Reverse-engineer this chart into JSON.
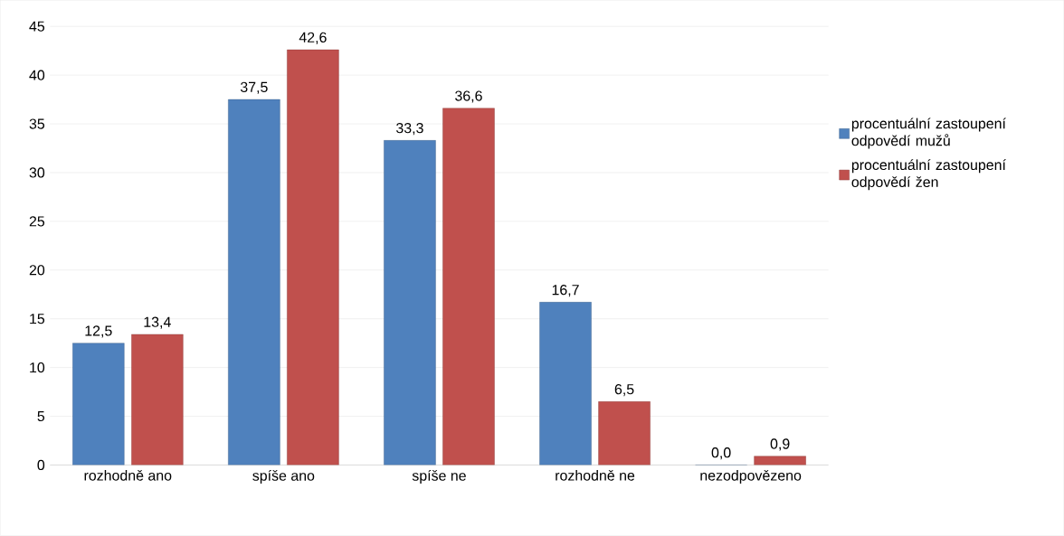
{
  "chart_data": {
    "type": "bar",
    "categories": [
      "rozhodně ano",
      "spíše ano",
      "spíše ne",
      "rozhodně ne",
      "nezodpovězeno"
    ],
    "series": [
      {
        "name": "procentuální zastoupení odpovědí mužů",
        "color": "#4f81bd",
        "values": [
          12.5,
          37.5,
          33.3,
          16.7,
          0.0
        ],
        "value_labels": [
          "12,5",
          "37,5",
          "33,3",
          "16,7",
          "0,0"
        ]
      },
      {
        "name": "procentuální zastoupení odpovědí žen",
        "color": "#c0504d",
        "values": [
          13.4,
          42.6,
          36.6,
          6.5,
          0.9
        ],
        "value_labels": [
          "13,4",
          "42,6",
          "36,6",
          "6,5",
          "0,9"
        ]
      }
    ],
    "ylim": [
      0,
      45
    ],
    "yticks": [
      0,
      5,
      10,
      15,
      20,
      25,
      30,
      35,
      40,
      45
    ],
    "grid": "y",
    "legend": "right"
  }
}
